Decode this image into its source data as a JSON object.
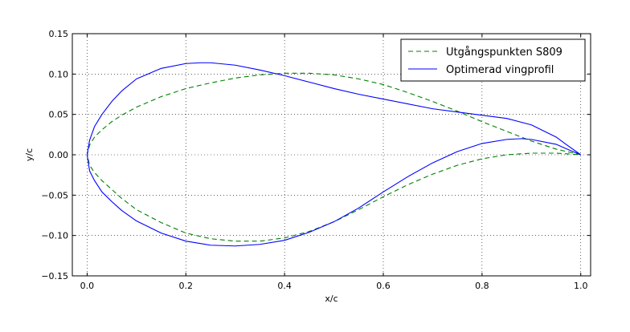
{
  "chart_data": {
    "type": "line",
    "title": "",
    "xlabel": "x/c",
    "ylabel": "y/c",
    "xlim": [
      -0.03,
      1.02
    ],
    "ylim": [
      -0.15,
      0.15
    ],
    "grid": true,
    "legend_position": "top-right",
    "x_ticks": [
      "0.0",
      "0.2",
      "0.4",
      "0.6",
      "0.8",
      "1.0"
    ],
    "x_tick_values": [
      0.0,
      0.2,
      0.4,
      0.6,
      0.8,
      1.0
    ],
    "y_ticks": [
      "−0.15",
      "−0.10",
      "−0.05",
      "0.00",
      "0.05",
      "0.10",
      "0.15"
    ],
    "y_tick_values": [
      -0.15,
      -0.1,
      -0.05,
      0.0,
      0.05,
      0.1,
      0.15
    ],
    "series": [
      {
        "name": "Utgångspunkten S809",
        "color": "#008000",
        "line_style": "dashed",
        "x": [
          1.0,
          0.95,
          0.9,
          0.85,
          0.8,
          0.75,
          0.7,
          0.65,
          0.6,
          0.55,
          0.5,
          0.45,
          0.4,
          0.35,
          0.3,
          0.25,
          0.2,
          0.15,
          0.1,
          0.07,
          0.05,
          0.03,
          0.015,
          0.005,
          0.0,
          0.005,
          0.015,
          0.03,
          0.05,
          0.07,
          0.1,
          0.15,
          0.2,
          0.25,
          0.3,
          0.35,
          0.4,
          0.45,
          0.5,
          0.55,
          0.6,
          0.65,
          0.7,
          0.75,
          0.8,
          0.85,
          0.9,
          0.95,
          1.0
        ],
        "y": [
          0.0,
          0.007,
          0.017,
          0.029,
          0.041,
          0.054,
          0.066,
          0.077,
          0.087,
          0.094,
          0.099,
          0.101,
          0.101,
          0.099,
          0.095,
          0.089,
          0.082,
          0.072,
          0.059,
          0.049,
          0.041,
          0.031,
          0.022,
          0.012,
          0.0,
          -0.013,
          -0.022,
          -0.032,
          -0.043,
          -0.054,
          -0.068,
          -0.084,
          -0.097,
          -0.104,
          -0.107,
          -0.107,
          -0.103,
          -0.095,
          -0.083,
          -0.068,
          -0.052,
          -0.037,
          -0.024,
          -0.013,
          -0.005,
          0.0,
          0.002,
          0.002,
          0.0
        ]
      },
      {
        "name": "Optimerad vingprofil",
        "color": "#0000ff",
        "line_style": "solid",
        "x": [
          1.0,
          0.97,
          0.95,
          0.9,
          0.85,
          0.8,
          0.75,
          0.7,
          0.65,
          0.6,
          0.55,
          0.5,
          0.45,
          0.4,
          0.35,
          0.3,
          0.25,
          0.23,
          0.2,
          0.15,
          0.1,
          0.07,
          0.05,
          0.03,
          0.015,
          0.005,
          0.0,
          0.005,
          0.015,
          0.03,
          0.05,
          0.07,
          0.1,
          0.15,
          0.2,
          0.25,
          0.3,
          0.35,
          0.4,
          0.45,
          0.5,
          0.55,
          0.6,
          0.65,
          0.7,
          0.75,
          0.8,
          0.85,
          0.88,
          0.9,
          0.95,
          0.98,
          1.0
        ],
        "y": [
          0.0,
          0.013,
          0.022,
          0.037,
          0.045,
          0.049,
          0.053,
          0.057,
          0.063,
          0.069,
          0.075,
          0.082,
          0.09,
          0.098,
          0.105,
          0.111,
          0.114,
          0.114,
          0.113,
          0.107,
          0.094,
          0.079,
          0.066,
          0.05,
          0.035,
          0.018,
          0.0,
          -0.02,
          -0.032,
          -0.046,
          -0.058,
          -0.069,
          -0.082,
          -0.097,
          -0.107,
          -0.112,
          -0.113,
          -0.111,
          -0.106,
          -0.096,
          -0.083,
          -0.066,
          -0.046,
          -0.027,
          -0.01,
          0.004,
          0.014,
          0.019,
          0.02,
          0.019,
          0.013,
          0.005,
          0.0
        ]
      }
    ]
  }
}
